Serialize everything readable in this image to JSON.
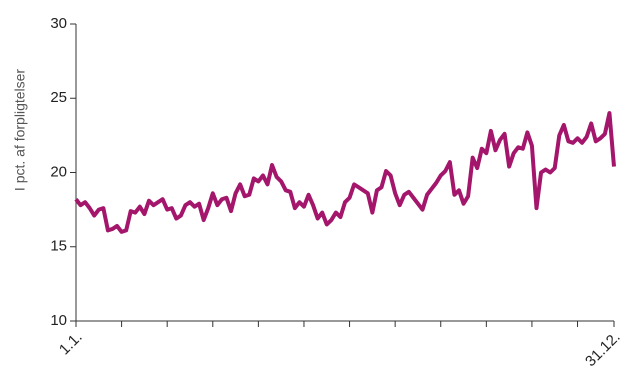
{
  "chart_data": {
    "type": "line",
    "y_label": "I pct. af forpligtelser",
    "categories": [
      "1.1.",
      null,
      null,
      null,
      null,
      null,
      null,
      null,
      null,
      null,
      null,
      null,
      null,
      null,
      null,
      null,
      null,
      null,
      null,
      null,
      null,
      null,
      null,
      null,
      null,
      null,
      null,
      null,
      null,
      null,
      null,
      null,
      null,
      null,
      null,
      null,
      null,
      null,
      null,
      null,
      null,
      null,
      null,
      null,
      null,
      null,
      null,
      null,
      null,
      null,
      null,
      null,
      null,
      null,
      null,
      null,
      null,
      null,
      null,
      null,
      null,
      null,
      null,
      null,
      null,
      null,
      null,
      null,
      null,
      null,
      null,
      null,
      null,
      null,
      null,
      null,
      null,
      null,
      null,
      null,
      null,
      null,
      null,
      null,
      null,
      null,
      null,
      null,
      null,
      null,
      null,
      null,
      null,
      null,
      null,
      null,
      null,
      null,
      null,
      null,
      null,
      null,
      null,
      null,
      null,
      null,
      null,
      null,
      null,
      null,
      null,
      null,
      null,
      null,
      null,
      null,
      null,
      null,
      "31.12."
    ],
    "values": [
      18.2,
      17.8,
      18.0,
      17.6,
      17.1,
      17.5,
      17.6,
      16.1,
      16.2,
      16.4,
      16.0,
      16.1,
      17.4,
      17.3,
      17.7,
      17.2,
      18.1,
      17.8,
      18.0,
      18.2,
      17.5,
      17.6,
      16.9,
      17.1,
      17.8,
      18.0,
      17.7,
      17.9,
      16.8,
      17.6,
      18.6,
      17.8,
      18.2,
      18.3,
      17.4,
      18.6,
      19.2,
      18.4,
      18.5,
      19.6,
      19.4,
      19.8,
      19.2,
      20.5,
      19.7,
      19.4,
      18.8,
      18.7,
      17.6,
      18.0,
      17.7,
      18.5,
      17.8,
      16.9,
      17.3,
      16.5,
      16.8,
      17.3,
      17.0,
      18.0,
      18.3,
      19.2,
      19.0,
      18.8,
      18.6,
      17.3,
      18.8,
      19.0,
      20.1,
      19.8,
      18.6,
      17.8,
      18.5,
      18.7,
      18.3,
      17.9,
      17.5,
      18.5,
      18.9,
      19.3,
      19.8,
      20.1,
      20.7,
      18.5,
      18.8,
      17.9,
      18.4,
      21.0,
      20.3,
      21.6,
      21.3,
      22.8,
      21.5,
      22.2,
      22.6,
      20.4,
      21.3,
      21.7,
      21.6,
      22.7,
      21.8,
      17.6,
      20.0,
      20.2,
      20.0,
      20.3,
      22.5,
      23.2,
      22.1,
      22.0,
      22.3,
      22.0,
      22.4,
      23.3,
      22.1,
      22.3,
      22.6,
      24.0,
      20.4
    ],
    "color": "#a3166b",
    "ylim": [
      10,
      30
    ],
    "yticks": [
      10,
      15,
      20,
      25,
      30
    ]
  }
}
